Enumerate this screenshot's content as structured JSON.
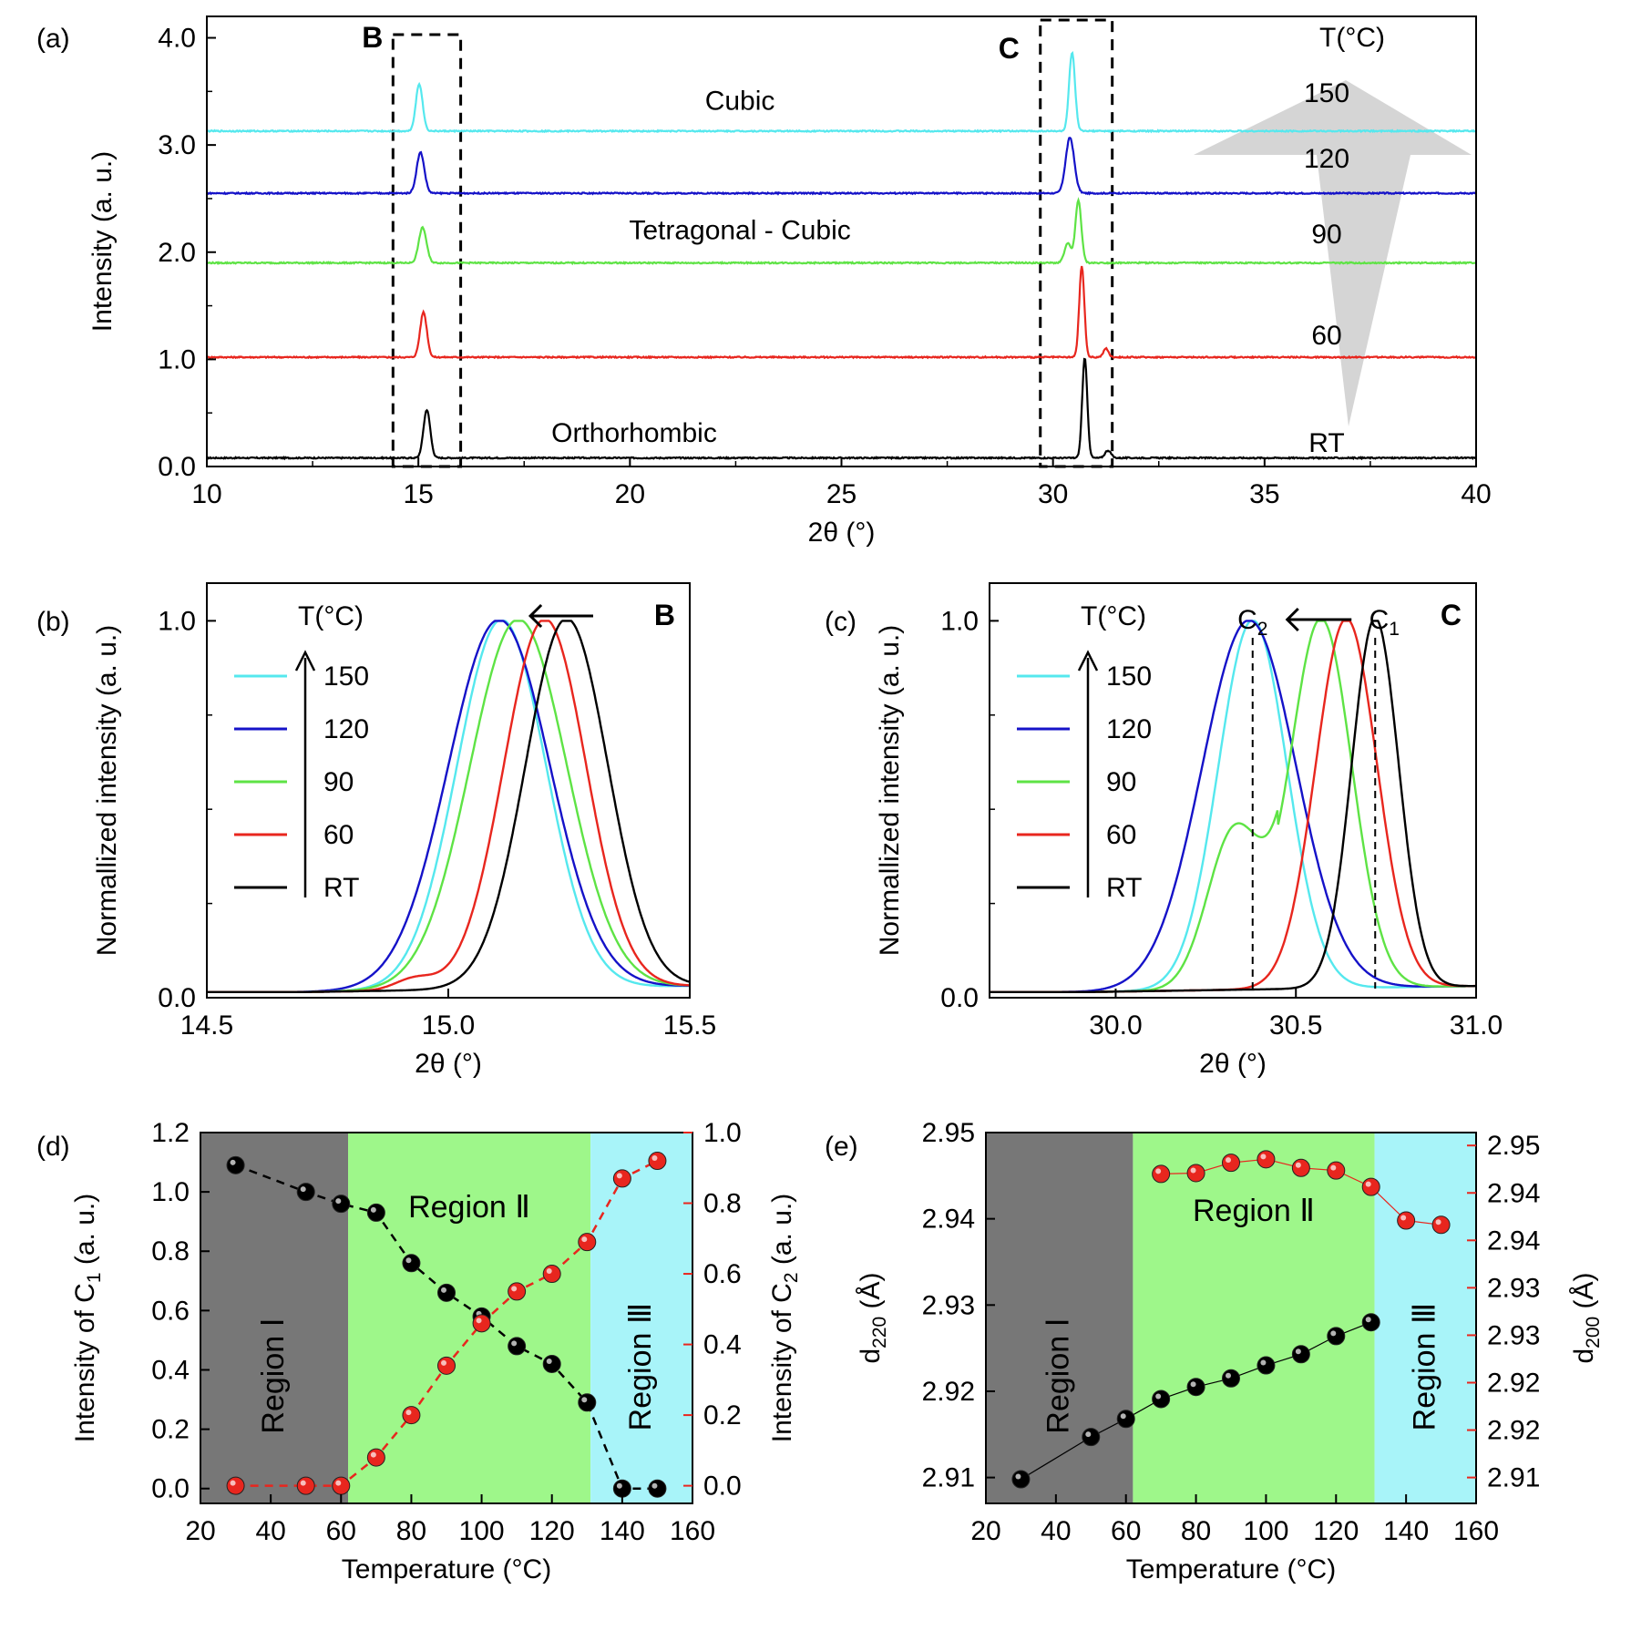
{
  "panels": {
    "a": {
      "label": "(a)"
    },
    "b": {
      "label": "(b)"
    },
    "c": {
      "label": "(c)"
    },
    "d": {
      "label": "(d)"
    },
    "e": {
      "label": "(e)"
    }
  },
  "chart_data": [
    {
      "id": "a",
      "type": "line",
      "xlabel": "2θ (°)",
      "ylabel": "Intensity (a. u.)",
      "xlim": [
        10,
        40
      ],
      "ylim": [
        0,
        4.2
      ],
      "xticks": [
        "10",
        "15",
        "20",
        "25",
        "30",
        "35",
        "40"
      ],
      "yticks": [
        "0.0",
        "1.0",
        "2.0",
        "3.0",
        "4.0"
      ],
      "legend_title": "T(°C)",
      "series": [
        {
          "name": "RT",
          "color": "#000000",
          "baseline": 0.08,
          "peaks": [
            {
              "x": 15.2,
              "h": 0.45,
              "w": 0.08
            },
            {
              "x": 30.75,
              "h": 0.93,
              "w": 0.06
            },
            {
              "x": 31.3,
              "h": 0.07,
              "w": 0.07
            }
          ]
        },
        {
          "name": "60",
          "color": "#e8261e",
          "baseline": 1.02,
          "peaks": [
            {
              "x": 15.12,
              "h": 0.42,
              "w": 0.08
            },
            {
              "x": 30.68,
              "h": 0.85,
              "w": 0.06
            },
            {
              "x": 31.25,
              "h": 0.08,
              "w": 0.06
            }
          ]
        },
        {
          "name": "90",
          "color": "#5ee345",
          "baseline": 1.9,
          "peaks": [
            {
              "x": 15.1,
              "h": 0.33,
              "w": 0.09
            },
            {
              "x": 30.6,
              "h": 0.58,
              "w": 0.07
            },
            {
              "x": 30.35,
              "h": 0.18,
              "w": 0.08
            }
          ]
        },
        {
          "name": "120",
          "color": "#1512c8",
          "baseline": 2.55,
          "peaks": [
            {
              "x": 15.05,
              "h": 0.38,
              "w": 0.09
            },
            {
              "x": 30.4,
              "h": 0.52,
              "w": 0.1
            }
          ]
        },
        {
          "name": "150",
          "color": "#55e8ee",
          "baseline": 3.13,
          "peaks": [
            {
              "x": 15.02,
              "h": 0.44,
              "w": 0.08
            },
            {
              "x": 30.45,
              "h": 0.73,
              "w": 0.07
            }
          ]
        }
      ],
      "phase_labels": [
        "Orthorhombic",
        "Tetragonal - Cubic",
        "Cubic"
      ],
      "regions": [
        {
          "label": "B",
          "x0": 14.4,
          "x1": 16.0
        },
        {
          "label": "C",
          "x0": 29.7,
          "x1": 31.4
        }
      ]
    },
    {
      "id": "b",
      "type": "line",
      "xlabel": "2θ (°)",
      "ylabel": "Normallized intensity (a. u.)",
      "xlim": [
        14.5,
        15.5
      ],
      "ylim": [
        0,
        1.1
      ],
      "xticks": [
        "14.5",
        "15.0",
        "15.5"
      ],
      "yticks": [
        "0.0",
        "1.0"
      ],
      "corner_label": "B",
      "legend_title": "T(°C)",
      "series": [
        {
          "name": "150",
          "color": "#55e8ee",
          "peak": 15.11,
          "sigma": 0.092
        },
        {
          "name": "120",
          "color": "#1512c8",
          "peak": 15.105,
          "sigma": 0.105
        },
        {
          "name": "90",
          "color": "#5ee345",
          "peak": 15.145,
          "sigma": 0.1
        },
        {
          "name": "60",
          "color": "#e8261e",
          "peak": 15.2,
          "sigma": 0.085
        },
        {
          "name": "RT",
          "color": "#000000",
          "peak": 15.245,
          "sigma": 0.085
        }
      ]
    },
    {
      "id": "c",
      "type": "line",
      "xlabel": "2θ (°)",
      "ylabel": "Normallized intensity (a. u.)",
      "xlim": [
        29.65,
        31.0
      ],
      "ylim": [
        0,
        1.1
      ],
      "xticks": [
        "30.0",
        "30.5",
        "31.0"
      ],
      "yticks": [
        "0.0",
        "1.0"
      ],
      "corner_label": "C",
      "marker_c2": {
        "base": "C",
        "sub": "2",
        "x": 30.38
      },
      "marker_c1": {
        "base": "C",
        "sub": "1",
        "x": 30.72
      },
      "legend_title": "T(°C)",
      "series": [
        {
          "name": "150",
          "color": "#55e8ee",
          "peak": 30.38,
          "sigma": 0.095
        },
        {
          "name": "120",
          "color": "#1512c8",
          "peak": 30.37,
          "sigma": 0.13
        },
        {
          "name": "90",
          "color": "#5ee345",
          "peak": 30.57,
          "sigma": 0.085
        },
        {
          "name": "60",
          "color": "#e8261e",
          "peak": 30.64,
          "sigma": 0.085
        },
        {
          "name": "RT",
          "color": "#000000",
          "peak": 30.72,
          "sigma": 0.065
        }
      ]
    },
    {
      "id": "d",
      "type": "scatter",
      "xlabel": "Temperature (°C)",
      "ylabel_left": {
        "pre": "Intensity of C",
        "sub": "1",
        "post": " (a. u.)"
      },
      "ylabel_right": {
        "pre": "Intensity of C",
        "sub": "2",
        "post": " (a. u.)"
      },
      "xlim": [
        20,
        160
      ],
      "ylim_left": [
        -0.05,
        1.2
      ],
      "ylim_right": [
        -0.05,
        1.0
      ],
      "xticks": [
        "20",
        "40",
        "60",
        "80",
        "100",
        "120",
        "140",
        "160"
      ],
      "yticks_left": [
        "0.0",
        "0.2",
        "0.4",
        "0.6",
        "0.8",
        "1.0",
        "1.2"
      ],
      "yticks_right": [
        "0.0",
        "0.2",
        "0.4",
        "0.6",
        "0.8",
        "1.0"
      ],
      "regions": [
        {
          "label": "Region Ⅰ",
          "x0": 20,
          "x1": 62,
          "color": "#777777",
          "text_color": "#b5b5b5"
        },
        {
          "label": "Region Ⅱ",
          "x0": 62,
          "x1": 131,
          "color": "#9ef78a",
          "text_color": "#7a8a7a"
        },
        {
          "label": "Region Ⅲ",
          "x0": 131,
          "x1": 160,
          "color": "#a8f4f9",
          "text_color": "#7a9a9a"
        }
      ],
      "series": [
        {
          "name": "C1",
          "axis": "left",
          "color": "#000000",
          "x": [
            30,
            50,
            60,
            70,
            80,
            90,
            100,
            110,
            120,
            130,
            140,
            150
          ],
          "y": [
            1.09,
            1.0,
            0.96,
            0.93,
            0.76,
            0.66,
            0.58,
            0.48,
            0.42,
            0.29,
            0.0,
            0.0
          ]
        },
        {
          "name": "C2",
          "axis": "right",
          "color": "#e8261e",
          "x": [
            30,
            50,
            60,
            70,
            80,
            90,
            100,
            110,
            120,
            130,
            140,
            150
          ],
          "y": [
            0.0,
            0.0,
            0.0,
            0.08,
            0.2,
            0.34,
            0.46,
            0.55,
            0.6,
            0.69,
            0.87,
            0.92
          ]
        }
      ]
    },
    {
      "id": "e",
      "type": "scatter",
      "xlabel": "Temperature (°C)",
      "ylabel_left": {
        "pre": "d",
        "sub": "220",
        "post": " (Å)"
      },
      "ylabel_right": {
        "pre": "d",
        "sub": "200",
        "post": " (Å)"
      },
      "xlim": [
        20,
        160
      ],
      "ylim_left": [
        2.907,
        2.95
      ],
      "ylim_right": [
        2.907,
        2.95
      ],
      "xticks": [
        "20",
        "40",
        "60",
        "80",
        "100",
        "120",
        "140",
        "160"
      ],
      "yticks_left": [
        "2.91",
        "2.92",
        "2.93",
        "2.94",
        "2.95"
      ],
      "yticks_right": [
        "2.91",
        "2.92",
        "2.92",
        "2.93",
        "2.93",
        "2.94",
        "2.94",
        "2.95"
      ],
      "regions": [
        {
          "label": "Region Ⅰ",
          "x0": 20,
          "x1": 62,
          "color": "#777777",
          "text_color": "#b5b5b5"
        },
        {
          "label": "Region Ⅱ",
          "x0": 62,
          "x1": 131,
          "color": "#9ef78a",
          "text_color": "#7a8a7a"
        },
        {
          "label": "Region Ⅲ",
          "x0": 131,
          "x1": 160,
          "color": "#a8f4f9",
          "text_color": "#7a9a9a"
        }
      ],
      "series": [
        {
          "name": "d220",
          "axis": "left",
          "color": "#000000",
          "x": [
            30,
            50,
            60,
            70,
            80,
            90,
            100,
            110,
            120,
            130
          ],
          "y": [
            2.9098,
            2.9147,
            2.9168,
            2.9191,
            2.9205,
            2.9215,
            2.923,
            2.9243,
            2.9264,
            2.928
          ]
        },
        {
          "name": "d200",
          "axis": "right",
          "color": "#e8261e",
          "x": [
            70,
            80,
            90,
            100,
            110,
            120,
            130,
            140,
            150
          ],
          "y": [
            2.9452,
            2.9453,
            2.9465,
            2.9469,
            2.9459,
            2.9456,
            2.9437,
            2.9398,
            2.9393
          ]
        }
      ]
    }
  ]
}
